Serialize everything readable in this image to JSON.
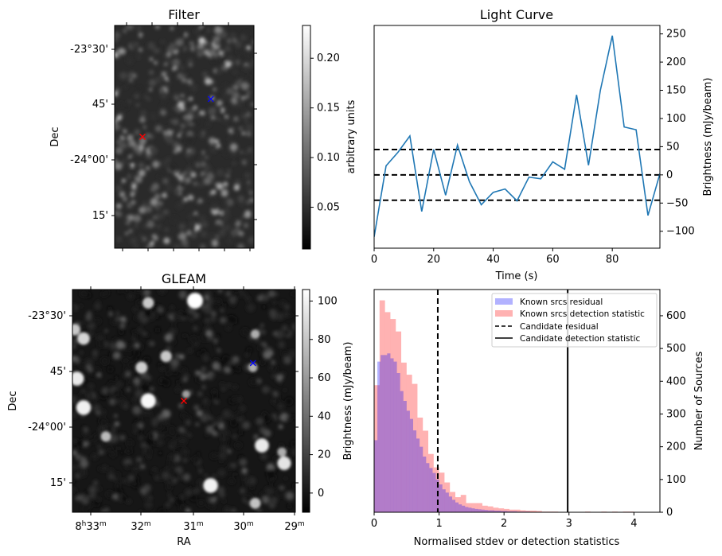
{
  "chart_data": [
    {
      "type": "heatmap",
      "title": "Filter",
      "ylabel": "Dec",
      "ytick_labels": [
        "-23°30'",
        "45'",
        "-24°00'",
        "15'"
      ],
      "colorbar": {
        "label": "arbitrary units",
        "range": [
          0.008,
          0.233
        ],
        "ticks": [
          0.05,
          0.1,
          0.15,
          0.2
        ],
        "tick_labels": [
          "0.05",
          "0.10",
          "0.15",
          "0.20"
        ],
        "colormap": "gray"
      },
      "markers": [
        {
          "name": "candidate",
          "symbol": "x",
          "color": "#ff0000",
          "fx": 0.2,
          "fy": 0.5
        },
        {
          "name": "known-source",
          "symbol": "x",
          "color": "#0000ff",
          "fx": 0.69,
          "fy": 0.33
        }
      ]
    },
    {
      "type": "line",
      "title": "Light Curve",
      "xlabel": "Time (s)",
      "ylabel": "Brightness (mJy/beam)",
      "xlim": [
        0,
        96
      ],
      "ylim": [
        -130,
        265
      ],
      "xticks": [
        0,
        20,
        40,
        60,
        80
      ],
      "yticks": [
        -100,
        -50,
        0,
        50,
        100,
        150,
        200,
        250
      ],
      "ytick_labels": [
        "−100",
        "−50",
        "0",
        "50",
        "100",
        "150",
        "200",
        "250"
      ],
      "grid": false,
      "series": [
        {
          "name": "light-curve",
          "color": "#1f77b4",
          "x": [
            0,
            4,
            8,
            12,
            16,
            20,
            24,
            28,
            32,
            36,
            40,
            44,
            48,
            52,
            56,
            60,
            64,
            68,
            72,
            76,
            80,
            84,
            88,
            92,
            96
          ],
          "y": [
            -110,
            16,
            40,
            69,
            -65,
            45,
            -36,
            53,
            -12,
            -53,
            -31,
            -25,
            -46,
            -4,
            -7,
            23,
            10,
            142,
            17,
            150,
            247,
            85,
            80,
            -72,
            2
          ]
        }
      ],
      "hlines": [
        {
          "y": 45,
          "style": "dashed",
          "color": "#000000"
        },
        {
          "y": 0,
          "style": "dashed",
          "color": "#000000"
        },
        {
          "y": -45,
          "style": "dashed",
          "color": "#000000"
        }
      ]
    },
    {
      "type": "heatmap",
      "title": "GLEAM",
      "xlabel": "RA",
      "ylabel": "Dec",
      "xtick_labels": [
        "8h33m",
        "32m",
        "31m",
        "30m",
        "29m"
      ],
      "ytick_labels": [
        "-23°30'",
        "45'",
        "-24°00'",
        "15'"
      ],
      "colorbar": {
        "label": "Brightness (mJy/beam)",
        "range": [
          -10,
          106
        ],
        "ticks": [
          0,
          20,
          40,
          60,
          80,
          100
        ],
        "tick_labels": [
          "0",
          "20",
          "40",
          "60",
          "80",
          "100"
        ],
        "colormap": "gray"
      },
      "sources": [
        {
          "fx": 0.55,
          "fy": 0.05,
          "r": 1.0
        },
        {
          "fx": 0.34,
          "fy": 0.06,
          "r": 0.6
        },
        {
          "fx": 0.05,
          "fy": 0.22,
          "r": 0.7
        },
        {
          "fx": 0.01,
          "fy": 0.18,
          "r": 0.6
        },
        {
          "fx": 0.42,
          "fy": 0.3,
          "r": 0.6
        },
        {
          "fx": 0.31,
          "fy": 0.35,
          "r": 0.65
        },
        {
          "fx": 0.02,
          "fy": 0.4,
          "r": 0.85
        },
        {
          "fx": 0.34,
          "fy": 0.5,
          "r": 0.95
        },
        {
          "fx": 0.05,
          "fy": 0.53,
          "r": 0.9
        },
        {
          "fx": 0.81,
          "fy": 0.35,
          "r": 0.4
        },
        {
          "fx": 0.82,
          "fy": 0.2,
          "r": 0.4
        },
        {
          "fx": 0.85,
          "fy": 0.7,
          "r": 0.85
        },
        {
          "fx": 0.95,
          "fy": 0.78,
          "r": 0.8
        },
        {
          "fx": 0.94,
          "fy": 0.73,
          "r": 0.4
        },
        {
          "fx": 0.62,
          "fy": 0.88,
          "r": 0.9
        },
        {
          "fx": 0.82,
          "fy": 0.96,
          "r": 0.55
        },
        {
          "fx": 0.15,
          "fy": 0.66,
          "r": 0.5
        },
        {
          "fx": 0.51,
          "fy": 0.47,
          "r": 0.3
        }
      ],
      "markers": [
        {
          "name": "candidate",
          "symbol": "x",
          "color": "#ff0000",
          "fx": 0.5,
          "fy": 0.5
        },
        {
          "name": "known-source",
          "symbol": "x",
          "color": "#0000ff",
          "fx": 0.81,
          "fy": 0.33
        }
      ]
    },
    {
      "type": "bar",
      "subtype": "histogram",
      "xlabel": "Normalised stdev or detection statistics",
      "ylabel": "Number of Sources",
      "xlim": [
        0,
        4.4
      ],
      "ylim": [
        0,
        680
      ],
      "xticks": [
        0,
        1,
        2,
        3,
        4
      ],
      "yticks": [
        0,
        100,
        200,
        300,
        400,
        500,
        600
      ],
      "legend_position": "top-right",
      "series": [
        {
          "name": "Known srcs residual",
          "color": "#0000ff",
          "alpha": 0.3,
          "bin_start": 0,
          "bin_width": 0.05,
          "values": [
            220,
            460,
            480,
            480,
            485,
            470,
            460,
            425,
            370,
            340,
            310,
            285,
            250,
            225,
            200,
            170,
            150,
            135,
            120,
            100,
            85,
            70,
            60,
            48,
            38,
            30,
            24,
            20,
            16,
            14,
            12,
            10,
            9,
            8,
            7,
            6,
            6,
            5,
            5,
            4,
            4,
            3,
            3,
            3,
            2,
            2,
            2,
            2,
            1,
            1
          ]
        },
        {
          "name": "Known srcs detection statistic",
          "color": "#ff0000",
          "alpha": 0.3,
          "bin_start": 0,
          "bin_width": 0.0833,
          "values": [
            388,
            647,
            611,
            590,
            552,
            457,
            420,
            392,
            289,
            249,
            178,
            137,
            121,
            91,
            62,
            46,
            53,
            28,
            28,
            28,
            20,
            18,
            14,
            12,
            10,
            8,
            8,
            6,
            5,
            5,
            4,
            2,
            2,
            2,
            1,
            1,
            0,
            0,
            0,
            2,
            1,
            0,
            2,
            0,
            2,
            1,
            2,
            2,
            0,
            0,
            1,
            0
          ]
        }
      ],
      "vlines": [
        {
          "name": "Candidate residual",
          "x": 0.98,
          "style": "dashed",
          "color": "#000000"
        },
        {
          "name": "Candidate detection statistic",
          "x": 2.98,
          "style": "solid",
          "color": "#000000"
        }
      ],
      "legend": [
        "Known srcs residual",
        "Known srcs detection statistic",
        "Candidate residual",
        "Candidate detection statistic"
      ]
    }
  ]
}
